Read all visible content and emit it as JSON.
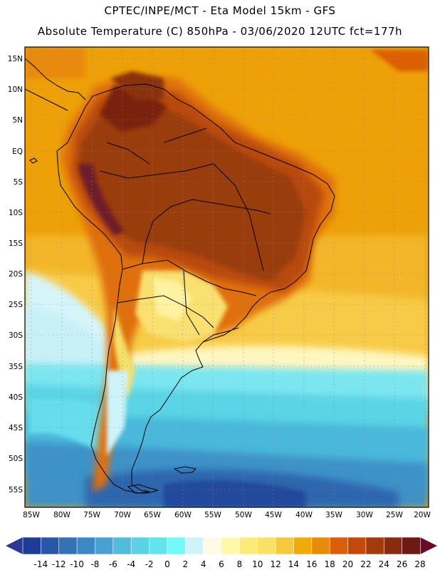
{
  "header": {
    "line1": "CPTEC/INPE/MCT  -   Eta Model 15km  -  GFS",
    "line2": "Absolute Temperature (C) 850hPa - 03/06/2020 12UTC fct=177h"
  },
  "axes": {
    "latitude_labels": [
      "15N",
      "10N",
      "5N",
      "EQ",
      "5S",
      "10S",
      "15S",
      "20S",
      "25S",
      "30S",
      "35S",
      "40S",
      "45S",
      "50S",
      "55S"
    ],
    "longitude_labels": [
      "85W",
      "80W",
      "75W",
      "70W",
      "65W",
      "60W",
      "55W",
      "50W",
      "45W",
      "40W",
      "35W",
      "30W",
      "25W",
      "20W"
    ]
  },
  "colorbar": {
    "ticks": [
      "-14",
      "-12",
      "-10",
      "-8",
      "-6",
      "-4",
      "-2",
      "0",
      "2",
      "4",
      "6",
      "8",
      "10",
      "12",
      "14",
      "16",
      "18",
      "20",
      "22",
      "24",
      "26",
      "28"
    ],
    "colors": [
      "#1e3c96",
      "#2a56a8",
      "#3472b6",
      "#3c88c4",
      "#4aa0d2",
      "#52bcdc",
      "#5cd0e4",
      "#62e4ee",
      "#72fafa",
      "#cdf4fa",
      "#fffae6",
      "#fff8a8",
      "#fceb78",
      "#fae064",
      "#f6c83c",
      "#f0aa0a",
      "#e88a0a",
      "#dc5e06",
      "#c44a0a",
      "#a43a0a",
      "#882c10",
      "#6e1a12"
    ],
    "low_end_color": "#2a3a90",
    "high_end_color": "#6a0a28"
  }
}
